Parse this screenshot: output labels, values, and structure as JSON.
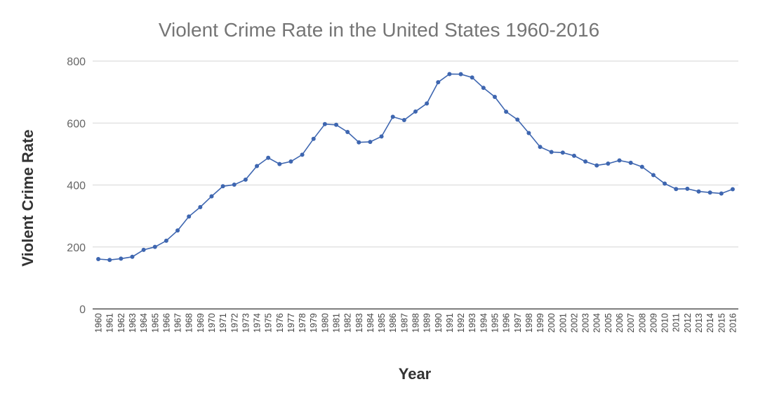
{
  "chart_data": {
    "type": "line",
    "title": "Violent Crime Rate in the United States 1960-2016",
    "xlabel": "Year",
    "ylabel": "Violent Crime Rate",
    "ylim": [
      0,
      800
    ],
    "yticks": [
      "0",
      "200",
      "400",
      "600",
      "800"
    ],
    "grid": true,
    "line_color": "#3e66b0",
    "categories": [
      "1960",
      "1961",
      "1962",
      "1963",
      "1964",
      "1965",
      "1966",
      "1967",
      "1968",
      "1969",
      "1970",
      "1971",
      "1972",
      "1973",
      "1974",
      "1975",
      "1976",
      "1977",
      "1978",
      "1979",
      "1980",
      "1981",
      "1982",
      "1983",
      "1984",
      "1985",
      "1986",
      "1987",
      "1988",
      "1989",
      "1990",
      "1991",
      "1992",
      "1993",
      "1994",
      "1995",
      "1996",
      "1997",
      "1998",
      "1999",
      "2000",
      "2001",
      "2002",
      "2003",
      "2004",
      "2005",
      "2006",
      "2007",
      "2008",
      "2009",
      "2010",
      "2011",
      "2012",
      "2013",
      "2014",
      "2015",
      "2016"
    ],
    "series": [
      {
        "name": "Violent Crime Rate",
        "values": [
          160.9,
          158.1,
          162.3,
          168.2,
          190.6,
          200.2,
          220.0,
          253.2,
          298.4,
          328.7,
          363.5,
          396.0,
          401.0,
          417.4,
          461.1,
          487.8,
          467.8,
          475.9,
          497.8,
          548.9,
          596.6,
          594.3,
          571.1,
          537.7,
          539.2,
          556.6,
          620.1,
          609.7,
          637.2,
          663.1,
          731.8,
          758.2,
          757.7,
          747.1,
          713.6,
          684.5,
          636.6,
          611.0,
          567.6,
          523.0,
          506.5,
          504.5,
          494.4,
          475.8,
          463.2,
          469.0,
          479.3,
          471.8,
          458.6,
          431.9,
          404.5,
          387.1,
          387.8,
          379.1,
          375.7,
          372.6,
          386.3
        ]
      }
    ]
  }
}
